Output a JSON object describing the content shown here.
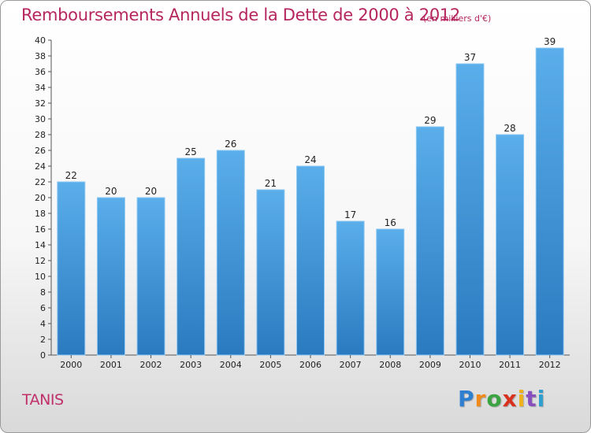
{
  "chart_data": {
    "type": "bar",
    "title": "Remboursements Annuels de la Dette de 2000 à 2012",
    "subtitle": "(en milliers d'€)",
    "categories": [
      "2000",
      "2001",
      "2002",
      "2003",
      "2004",
      "2005",
      "2006",
      "2007",
      "2008",
      "2009",
      "2010",
      "2011",
      "2012"
    ],
    "values": [
      22,
      20,
      20,
      25,
      26,
      21,
      24,
      17,
      16,
      29,
      37,
      28,
      39
    ],
    "ylim": [
      0,
      40
    ],
    "ytick_step": 2,
    "grid": false,
    "bar_color": "#3d95d8"
  },
  "footer": {
    "commune": "TANIS",
    "logo_letters": [
      "P",
      "r",
      "o",
      "x",
      "i",
      "t",
      "i"
    ],
    "logo_colors": [
      "#2f7fd0",
      "#f08a1c",
      "#3ba342",
      "#d8321f",
      "#f0b21c",
      "#8a4fbf",
      "#2f9fd0"
    ]
  }
}
